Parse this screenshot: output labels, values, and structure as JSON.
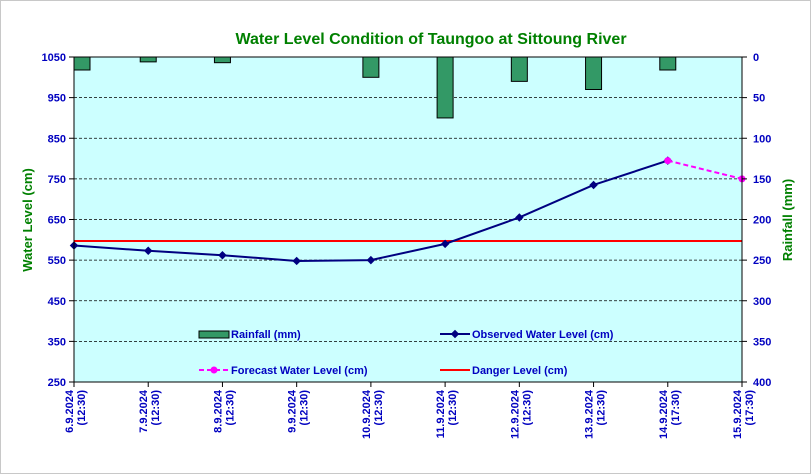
{
  "chart_data": {
    "type": "line",
    "title": "Water Level Condition of Taungoo at  Sittoung River",
    "ylabel": "Water Level (cm)",
    "y2label": "Rainfall (mm)",
    "ylim": [
      250,
      1050
    ],
    "y_ticks": [
      "1050",
      "950",
      "850",
      "750",
      "650",
      "550",
      "450",
      "350",
      "250"
    ],
    "y2lim": [
      0,
      400
    ],
    "y2_ticks": [
      "0",
      "50",
      "100",
      "150",
      "200",
      "250",
      "300",
      "350",
      "400"
    ],
    "categories": [
      [
        "6.9.2024",
        "(12:30)"
      ],
      [
        "7.9.2024",
        "(12:30)"
      ],
      [
        "8.9.2024",
        "(12:30)"
      ],
      [
        "9.9.2024",
        "(12:30)"
      ],
      [
        "10.9.2024",
        "(12:30)"
      ],
      [
        "11.9.2024",
        "(12:30)"
      ],
      [
        "12.9.2024",
        "(12:30)"
      ],
      [
        "13.9.2024",
        "(12:30)"
      ],
      [
        "14.9.2024",
        "(17:30)"
      ],
      [
        "15.9.2024",
        "(17:30)"
      ]
    ],
    "rainfall": {
      "name": "Rainfall (mm)",
      "values": [
        16,
        6,
        7,
        0,
        25,
        75,
        30,
        40,
        16,
        0
      ],
      "color": "#339966"
    },
    "observed": {
      "name": "Observed Water Level (cm)",
      "values": [
        586,
        573,
        562,
        548,
        550,
        590,
        655,
        735,
        795,
        null
      ],
      "color": "#000080"
    },
    "forecast": {
      "name": "Forecast Water Level (cm)",
      "values": [
        null,
        null,
        null,
        null,
        null,
        null,
        null,
        null,
        795,
        750
      ],
      "color": "#ff00ff"
    },
    "danger": {
      "name": "Danger Level (cm)",
      "value": 597,
      "color": "#ff0000"
    },
    "plot_background": "#ccffff",
    "grid": true,
    "legend_position": "lower-center"
  }
}
